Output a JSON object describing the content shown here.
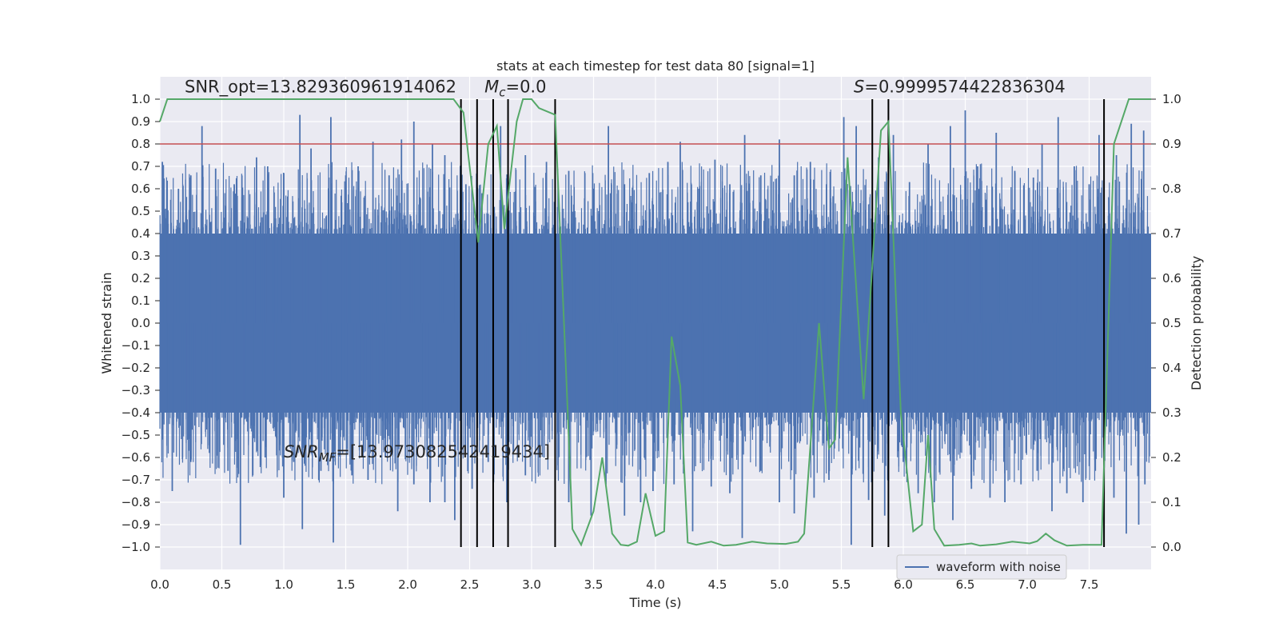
{
  "chart_data": {
    "type": "line",
    "title": "stats at each timestep for test data 80 [signal=1]",
    "xlabel": "Time (s)",
    "ylabel": "Whitened strain",
    "y2label": "Detection probability",
    "xlim": [
      0,
      8
    ],
    "ylim": [
      -1.1,
      1.1
    ],
    "y2lim": [
      -0.05,
      1.05
    ],
    "x_ticks": [
      "0.0",
      "0.5",
      "1.0",
      "1.5",
      "2.0",
      "2.5",
      "3.0",
      "3.5",
      "4.0",
      "4.5",
      "5.0",
      "5.5",
      "6.0",
      "6.5",
      "7.0",
      "7.5"
    ],
    "y_ticks": [
      "1.0",
      "0.9",
      "0.8",
      "0.7",
      "0.6",
      "0.5",
      "0.4",
      "0.3",
      "0.2",
      "0.1",
      "0.0",
      "−0.1",
      "−0.2",
      "−0.3",
      "−0.4",
      "−0.5",
      "−0.6",
      "−0.7",
      "−0.8",
      "−0.9",
      "−1.0"
    ],
    "y2_ticks": [
      "1.0",
      "0.9",
      "0.8",
      "0.7",
      "0.6",
      "0.5",
      "0.4",
      "0.3",
      "0.2",
      "0.1",
      "0.0"
    ],
    "grid": true,
    "legend_position": "lower-right",
    "series": [
      {
        "name": "waveform with noise",
        "axis": "left",
        "kind": "dense-strain",
        "color": "#4c72b0",
        "core_band": [
          -0.4,
          0.4
        ],
        "upper_spikes": [
          [
            0.02,
            0.72
          ],
          [
            0.15,
            0.6
          ],
          [
            0.25,
            0.66
          ],
          [
            0.34,
            0.88
          ],
          [
            0.45,
            0.69
          ],
          [
            0.6,
            0.62
          ],
          [
            0.78,
            0.74
          ],
          [
            0.87,
            0.7
          ],
          [
            1.0,
            0.67
          ],
          [
            1.13,
            0.93
          ],
          [
            1.22,
            0.78
          ],
          [
            1.38,
            0.92
          ],
          [
            1.5,
            0.66
          ],
          [
            1.6,
            0.7
          ],
          [
            1.72,
            0.81
          ],
          [
            1.85,
            0.66
          ],
          [
            1.95,
            0.82
          ],
          [
            2.05,
            0.9
          ],
          [
            2.2,
            0.8
          ],
          [
            2.3,
            0.75
          ],
          [
            2.47,
            0.62
          ],
          [
            2.6,
            0.58
          ],
          [
            2.75,
            0.88
          ],
          [
            2.95,
            0.75
          ],
          [
            3.12,
            0.72
          ],
          [
            3.3,
            0.68
          ],
          [
            3.5,
            0.6
          ],
          [
            3.62,
            0.88
          ],
          [
            3.75,
            0.62
          ],
          [
            3.95,
            0.67
          ],
          [
            4.1,
            0.72
          ],
          [
            4.2,
            0.81
          ],
          [
            4.35,
            0.6
          ],
          [
            4.48,
            0.73
          ],
          [
            4.6,
            0.62
          ],
          [
            4.72,
            0.84
          ],
          [
            4.85,
            0.66
          ],
          [
            5.0,
            0.82
          ],
          [
            5.12,
            0.66
          ],
          [
            5.25,
            0.72
          ],
          [
            5.38,
            0.62
          ],
          [
            5.52,
            0.92
          ],
          [
            5.62,
            0.88
          ],
          [
            5.8,
            0.74
          ],
          [
            5.92,
            0.84
          ],
          [
            6.05,
            0.63
          ],
          [
            6.2,
            0.8
          ],
          [
            6.38,
            0.88
          ],
          [
            6.5,
            0.95
          ],
          [
            6.6,
            0.7
          ],
          [
            6.75,
            0.85
          ],
          [
            6.9,
            0.68
          ],
          [
            7.05,
            0.65
          ],
          [
            7.12,
            0.8
          ],
          [
            7.25,
            0.92
          ],
          [
            7.38,
            0.7
          ],
          [
            7.5,
            0.62
          ],
          [
            7.58,
            0.84
          ],
          [
            7.72,
            0.75
          ],
          [
            7.84,
            0.89
          ],
          [
            7.94,
            0.86
          ]
        ],
        "lower_spikes": [
          [
            0.02,
            -0.52
          ],
          [
            0.1,
            -0.75
          ],
          [
            0.25,
            -0.62
          ],
          [
            0.4,
            -0.58
          ],
          [
            0.55,
            -0.66
          ],
          [
            0.65,
            -0.99
          ],
          [
            0.75,
            -0.68
          ],
          [
            0.85,
            -0.6
          ],
          [
            1.0,
            -0.78
          ],
          [
            1.08,
            -0.62
          ],
          [
            1.15,
            -0.92
          ],
          [
            1.3,
            -0.66
          ],
          [
            1.4,
            -0.98
          ],
          [
            1.55,
            -0.68
          ],
          [
            1.68,
            -0.7
          ],
          [
            1.82,
            -0.6
          ],
          [
            1.92,
            -0.84
          ],
          [
            2.05,
            -0.72
          ],
          [
            2.18,
            -0.8
          ],
          [
            2.3,
            -0.8
          ],
          [
            2.38,
            -0.88
          ],
          [
            2.52,
            -0.74
          ],
          [
            2.65,
            -0.62
          ],
          [
            2.8,
            -0.8
          ],
          [
            2.95,
            -0.68
          ],
          [
            3.1,
            -0.6
          ],
          [
            3.3,
            -0.8
          ],
          [
            3.48,
            -0.86
          ],
          [
            3.6,
            -0.72
          ],
          [
            3.75,
            -0.86
          ],
          [
            3.88,
            -0.8
          ],
          [
            3.98,
            -0.75
          ],
          [
            4.15,
            -0.72
          ],
          [
            4.3,
            -0.93
          ],
          [
            4.45,
            -0.73
          ],
          [
            4.6,
            -0.76
          ],
          [
            4.7,
            -0.96
          ],
          [
            4.85,
            -0.66
          ],
          [
            5.0,
            -0.8
          ],
          [
            5.12,
            -0.85
          ],
          [
            5.28,
            -0.78
          ],
          [
            5.4,
            -0.7
          ],
          [
            5.58,
            -0.99
          ],
          [
            5.72,
            -0.79
          ],
          [
            5.85,
            -0.86
          ],
          [
            6.0,
            -0.62
          ],
          [
            6.12,
            -0.76
          ],
          [
            6.25,
            -0.8
          ],
          [
            6.4,
            -0.88
          ],
          [
            6.55,
            -0.74
          ],
          [
            6.7,
            -0.78
          ],
          [
            6.82,
            -0.8
          ],
          [
            6.95,
            -0.72
          ],
          [
            7.08,
            -0.66
          ],
          [
            7.2,
            -0.84
          ],
          [
            7.32,
            -0.76
          ],
          [
            7.45,
            -0.8
          ],
          [
            7.55,
            -0.66
          ],
          [
            7.7,
            -0.78
          ],
          [
            7.8,
            -0.94
          ],
          [
            7.9,
            -0.9
          ],
          [
            7.95,
            -0.72
          ]
        ]
      },
      {
        "name": "",
        "axis": "right",
        "kind": "line",
        "color": "#55a868",
        "points": [
          [
            0.0,
            0.95
          ],
          [
            0.06,
            1.0
          ],
          [
            2.37,
            1.0
          ],
          [
            2.45,
            0.97
          ],
          [
            2.57,
            0.68
          ],
          [
            2.65,
            0.9
          ],
          [
            2.72,
            0.94
          ],
          [
            2.78,
            0.71
          ],
          [
            2.88,
            0.95
          ],
          [
            2.93,
            1.0
          ],
          [
            3.0,
            1.0
          ],
          [
            3.06,
            0.98
          ],
          [
            3.19,
            0.965
          ],
          [
            3.28,
            0.38
          ],
          [
            3.33,
            0.04
          ],
          [
            3.4,
            0.005
          ],
          [
            3.5,
            0.08
          ],
          [
            3.57,
            0.2
          ],
          [
            3.65,
            0.03
          ],
          [
            3.72,
            0.005
          ],
          [
            3.78,
            0.003
          ],
          [
            3.85,
            0.012
          ],
          [
            3.92,
            0.12
          ],
          [
            4.0,
            0.025
          ],
          [
            4.07,
            0.035
          ],
          [
            4.13,
            0.47
          ],
          [
            4.2,
            0.36
          ],
          [
            4.26,
            0.01
          ],
          [
            4.33,
            0.005
          ],
          [
            4.45,
            0.012
          ],
          [
            4.55,
            0.003
          ],
          [
            4.65,
            0.005
          ],
          [
            4.78,
            0.012
          ],
          [
            4.9,
            0.008
          ],
          [
            5.05,
            0.007
          ],
          [
            5.15,
            0.012
          ],
          [
            5.2,
            0.03
          ],
          [
            5.32,
            0.5
          ],
          [
            5.4,
            0.22
          ],
          [
            5.45,
            0.24
          ],
          [
            5.55,
            0.87
          ],
          [
            5.68,
            0.33
          ],
          [
            5.72,
            0.5
          ],
          [
            5.82,
            0.93
          ],
          [
            5.88,
            0.95
          ],
          [
            5.98,
            0.3
          ],
          [
            6.08,
            0.035
          ],
          [
            6.15,
            0.05
          ],
          [
            6.2,
            0.25
          ],
          [
            6.25,
            0.04
          ],
          [
            6.33,
            0.003
          ],
          [
            6.45,
            0.005
          ],
          [
            6.55,
            0.008
          ],
          [
            6.62,
            0.003
          ],
          [
            6.75,
            0.006
          ],
          [
            6.88,
            0.012
          ],
          [
            7.02,
            0.008
          ],
          [
            7.08,
            0.013
          ],
          [
            7.15,
            0.03
          ],
          [
            7.22,
            0.015
          ],
          [
            7.32,
            0.003
          ],
          [
            7.45,
            0.005
          ],
          [
            7.6,
            0.005
          ],
          [
            7.7,
            0.9
          ],
          [
            7.82,
            1.0
          ],
          [
            8.0,
            1.0
          ]
        ]
      }
    ],
    "threshold": {
      "axis": "right",
      "value": 0.9,
      "color": "#c44e52"
    },
    "vlines": [
      2.43,
      2.56,
      2.69,
      2.81,
      3.19,
      5.75,
      5.88,
      7.62
    ],
    "annotations": [
      {
        "text": "SNR_opt=13.829360961914062",
        "anchor": [
          0.2,
          1.03
        ]
      },
      {
        "text": "M_c=0.0",
        "anchor": [
          2.62,
          1.03
        ]
      },
      {
        "text": "S=0.9999574422836304",
        "anchor": [
          5.6,
          1.03
        ]
      },
      {
        "text": "SNR_MF=[13.973082542419434]",
        "anchor": [
          1.0,
          -0.6
        ]
      }
    ]
  }
}
